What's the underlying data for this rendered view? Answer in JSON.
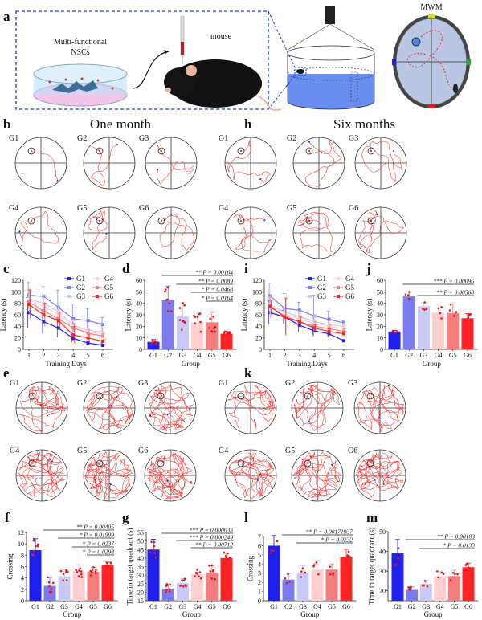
{
  "panel_letters": {
    "a": "a",
    "b": "b",
    "c": "c",
    "d": "d",
    "e": "e",
    "f": "f",
    "g": "g",
    "h": "h",
    "i": "i",
    "j": "j",
    "k": "k",
    "l": "l",
    "m": "m"
  },
  "schematic": {
    "cells_label_1": "Multi-functional",
    "cells_label_2": "NSCs",
    "mouse_label": "mouse",
    "maze_label": "MWM"
  },
  "titles": {
    "one_month": "One month",
    "six_months": "Six months"
  },
  "groups": [
    "G1",
    "G2",
    "G3",
    "G4",
    "G5",
    "G6"
  ],
  "colors": {
    "G1": "#1f1fef",
    "G2": "#7b7bf0",
    "G3": "#c9c9f6",
    "G4": "#ffcfcf",
    "G5": "#f57d7d",
    "G6": "#ff2424",
    "path": "#f04040"
  },
  "chart_data": [
    {
      "id": "c",
      "type": "line",
      "xlabel": "Training Days",
      "ylabel": "Latency (s)",
      "x": [
        1,
        2,
        3,
        4,
        5,
        6
      ],
      "ylim": [
        0,
        120
      ],
      "yticks": [
        0,
        20,
        40,
        60,
        80,
        100,
        120
      ],
      "legend": "top-right",
      "series": [
        {
          "name": "G1",
          "values": [
            64,
            48,
            37,
            19,
            11,
            7
          ],
          "err": [
            26,
            20,
            16,
            7,
            4,
            3
          ]
        },
        {
          "name": "G2",
          "values": [
            94,
            92,
            73,
            53,
            50,
            43
          ],
          "err": [
            22,
            18,
            30,
            26,
            21,
            12
          ]
        },
        {
          "name": "G3",
          "values": [
            88,
            80,
            65,
            42,
            33,
            30
          ],
          "err": [
            20,
            15,
            14,
            10,
            8,
            6
          ]
        },
        {
          "name": "G4",
          "values": [
            86,
            75,
            60,
            40,
            30,
            27
          ],
          "err": [
            22,
            14,
            12,
            10,
            6,
            5
          ]
        },
        {
          "name": "G5",
          "values": [
            82,
            67,
            53,
            37,
            28,
            23
          ],
          "err": [
            22,
            12,
            10,
            8,
            6,
            4
          ]
        },
        {
          "name": "G6",
          "values": [
            78,
            60,
            50,
            25,
            20,
            14
          ],
          "err": [
            25,
            20,
            15,
            15,
            5,
            3
          ]
        }
      ]
    },
    {
      "id": "d",
      "type": "bar",
      "xlabel": "Group",
      "ylabel": "Latency (s)",
      "categories": [
        "G1",
        "G2",
        "G3",
        "G4",
        "G5",
        "G6"
      ],
      "values": [
        6.5,
        43,
        28.5,
        23.5,
        23.5,
        13.5
      ],
      "err": [
        2,
        12,
        12,
        8,
        9,
        2
      ],
      "ylim": [
        0,
        60
      ],
      "yticks": [
        0,
        10,
        20,
        30,
        40,
        50,
        60
      ],
      "comparisons": [
        {
          "from": "G2",
          "to": "G6",
          "label": "** P = 0.00164"
        },
        {
          "from": "G3",
          "to": "G6",
          "label": "** P = 0.0089"
        },
        {
          "from": "G4",
          "to": "G6",
          "label": "* P = 0.0468"
        },
        {
          "from": "G5",
          "to": "G6",
          "label": "* P = 0.0164"
        }
      ]
    },
    {
      "id": "i",
      "type": "line",
      "xlabel": "Training Days",
      "ylabel": "Latency (s)",
      "x": [
        1,
        2,
        3,
        4,
        5,
        6
      ],
      "ylim": [
        0,
        120
      ],
      "yticks": [
        0,
        20,
        40,
        60,
        80,
        100,
        120
      ],
      "legend": "top-right",
      "series": [
        {
          "name": "G1",
          "values": [
            64,
            56,
            42,
            32,
            27,
            15
          ],
          "err": [
            20,
            12,
            12,
            8,
            5,
            2
          ]
        },
        {
          "name": "G2",
          "values": [
            93,
            71,
            68,
            58,
            52,
            46
          ],
          "err": [
            22,
            26,
            14,
            36,
            14,
            4
          ]
        },
        {
          "name": "G3",
          "values": [
            77,
            65,
            57,
            48,
            43,
            40
          ],
          "err": [
            15,
            15,
            10,
            12,
            8,
            6
          ]
        },
        {
          "name": "G4",
          "values": [
            78,
            62,
            53,
            45,
            40,
            36
          ],
          "err": [
            25,
            14,
            10,
            12,
            8,
            6
          ]
        },
        {
          "name": "G5",
          "values": [
            74,
            58,
            48,
            40,
            36,
            31
          ],
          "err": [
            20,
            32,
            10,
            8,
            6,
            5
          ]
        },
        {
          "name": "G6",
          "values": [
            75,
            56,
            48,
            37,
            31,
            27
          ],
          "err": [
            10,
            32,
            8,
            6,
            5,
            4
          ]
        }
      ]
    },
    {
      "id": "j",
      "type": "bar",
      "xlabel": "Group",
      "ylabel": "Latency (s)",
      "categories": [
        "G1",
        "G2",
        "G3",
        "G4",
        "G5",
        "G6"
      ],
      "values": [
        15.5,
        46,
        37.5,
        32,
        31.5,
        27
      ],
      "err": [
        1,
        4,
        3,
        7,
        8,
        4
      ],
      "ylim": [
        0,
        60
      ],
      "yticks": [
        0,
        10,
        20,
        30,
        40,
        50,
        60
      ],
      "comparisons": [
        {
          "from": "G2",
          "to": "G6",
          "label": "*** P = 0.00096"
        },
        {
          "from": "G3",
          "to": "G6",
          "label": "** P = 0.00568"
        }
      ]
    },
    {
      "id": "f",
      "type": "bar",
      "xlabel": "Group",
      "ylabel": "Crossing",
      "categories": [
        "G1",
        "G2",
        "G3",
        "G4",
        "G5",
        "G6"
      ],
      "values": [
        8.9,
        2.6,
        4.3,
        5.2,
        5.1,
        6.2
      ],
      "err": [
        2,
        1.5,
        1.2,
        1.2,
        0.8,
        0.6
      ],
      "ylim": [
        0,
        12
      ],
      "yticks": [
        0,
        2,
        4,
        6,
        8,
        10,
        12
      ],
      "comparisons": [
        {
          "from": "G2",
          "to": "G6",
          "label": "** P = 0.00405"
        },
        {
          "from": "G3",
          "to": "G6",
          "label": "* P = 0.01999"
        },
        {
          "from": "G4",
          "to": "G6",
          "label": "* P = 0.0237"
        },
        {
          "from": "G5",
          "to": "G6",
          "label": "* P = 0.0298"
        }
      ]
    },
    {
      "id": "g",
      "type": "bar",
      "xlabel": "Group",
      "ylabel": "Time in target quadrant (s)",
      "categories": [
        "G1",
        "G2",
        "G3",
        "G4",
        "G5",
        "G6"
      ],
      "values": [
        45,
        22,
        25.5,
        30.5,
        31.5,
        40
      ],
      "err": [
        6,
        2.5,
        2.5,
        3.5,
        4,
        3
      ],
      "ylim": [
        15,
        55
      ],
      "yticks": [
        15,
        20,
        25,
        30,
        35,
        40,
        45,
        50,
        55
      ],
      "comparisons": [
        {
          "from": "G2",
          "to": "G6",
          "label": "*** P = 0.000033"
        },
        {
          "from": "G3",
          "to": "G6",
          "label": "*** P = 0.000249"
        },
        {
          "from": "G4",
          "to": "G6",
          "label": "** P = 0.00712"
        }
      ]
    },
    {
      "id": "l",
      "type": "bar",
      "xlabel": "Group",
      "ylabel": "Crossing",
      "categories": [
        "G1",
        "G2",
        "G3",
        "G4",
        "G5",
        "G6"
      ],
      "values": [
        6,
        2.3,
        3,
        3.4,
        3.4,
        4.8
      ],
      "err": [
        1.1,
        0.7,
        0.8,
        1,
        0.6,
        0.8
      ],
      "ylim": [
        0,
        7
      ],
      "yticks": [
        0,
        1,
        2,
        3,
        4,
        5,
        6,
        7
      ],
      "comparisons": [
        {
          "from": "G2",
          "to": "G6",
          "label": "** P = 0.00171937"
        },
        {
          "from": "G3",
          "to": "G6",
          "label": "* P = 0.0232"
        }
      ]
    },
    {
      "id": "m",
      "type": "bar",
      "xlabel": "Group",
      "ylabel": "Time in target quadrant (s)",
      "categories": [
        "G1",
        "G2",
        "G3",
        "G4",
        "G5",
        "G6"
      ],
      "values": [
        39,
        20.5,
        23.5,
        27.5,
        27.5,
        32
      ],
      "err": [
        7,
        1.5,
        2,
        2.5,
        3,
        2
      ],
      "ylim": [
        15,
        50
      ],
      "yticks": [
        20,
        30,
        40,
        50
      ],
      "comparisons": [
        {
          "from": "G2",
          "to": "G6",
          "label": "** P = 0.00103"
        },
        {
          "from": "G3",
          "to": "G6",
          "label": "* P = 0.0133"
        }
      ]
    }
  ]
}
